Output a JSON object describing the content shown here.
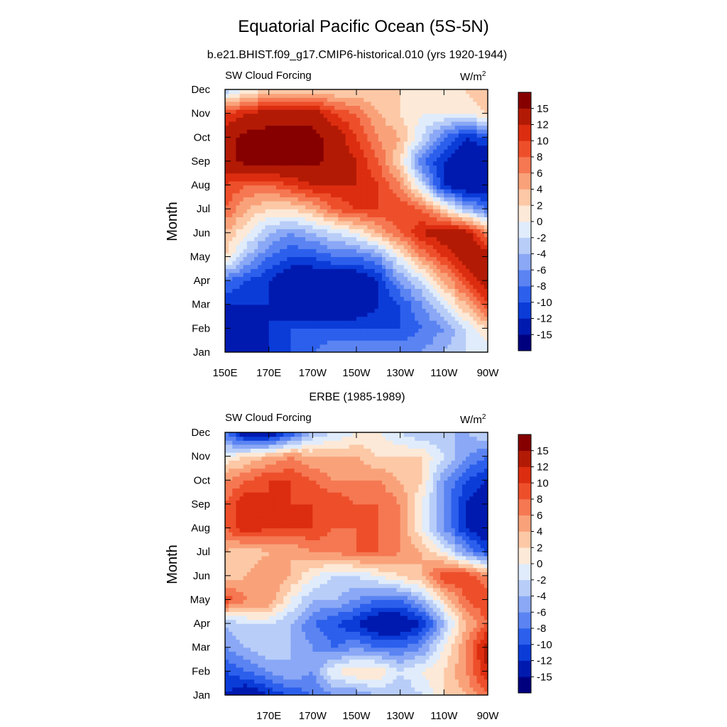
{
  "figure": {
    "title": "Equatorial Pacific Ocean (5S-5N)"
  },
  "colorbar": {
    "colors": [
      "#00007f",
      "#001ab0",
      "#0b3cd8",
      "#2c5fec",
      "#5b84f2",
      "#8aa8f5",
      "#b8cdf8",
      "#e0ecfb",
      "#fde9d7",
      "#fcc8a6",
      "#f9a27a",
      "#f57852",
      "#ee4f2b",
      "#dc2d10",
      "#b31a05",
      "#860000"
    ],
    "levels": [
      -15,
      -12,
      -10,
      -8,
      -6,
      -4,
      -2,
      0,
      2,
      4,
      6,
      8,
      10,
      12,
      15
    ],
    "labels": [
      "15",
      "12",
      "10",
      "8",
      "6",
      "4",
      "2",
      "0",
      "-2",
      "-4",
      "-6",
      "-8",
      "-10",
      "-12",
      "-15"
    ]
  },
  "chart_data": [
    {
      "type": "heatmap",
      "title": "b.e21.BHIST.f09_g17.CMIP6-historical.010 (yrs 1920-1944)",
      "left_label": "SW Cloud Forcing",
      "units": "W/m",
      "units_sup": "2",
      "ylabel": "Month",
      "xlabel": "",
      "y_categories": [
        "Jan",
        "Feb",
        "Mar",
        "Apr",
        "May",
        "Jun",
        "Jul",
        "Aug",
        "Sep",
        "Oct",
        "Nov",
        "Dec"
      ],
      "x_tick_labels": [
        "150E",
        "170E",
        "170W",
        "150W",
        "130W",
        "110W",
        "90W"
      ],
      "x_range_deg_east": [
        150,
        270
      ],
      "x_columns_deg_east": [
        150,
        160,
        170,
        180,
        190,
        200,
        210,
        220,
        230,
        240,
        250,
        260,
        270
      ],
      "values": [
        [
          -15,
          -15,
          -12,
          -10,
          -8,
          -6,
          -6,
          -6,
          -6,
          -6,
          -4,
          -2,
          -2
        ],
        [
          -15,
          -15,
          -12,
          -10,
          -10,
          -10,
          -10,
          -10,
          -10,
          -8,
          -6,
          -2,
          2
        ],
        [
          -12,
          -12,
          -12,
          -15,
          -15,
          -15,
          -15,
          -12,
          -10,
          -6,
          -2,
          4,
          10
        ],
        [
          -8,
          -10,
          -12,
          -15,
          -15,
          -15,
          -15,
          -12,
          -6,
          -2,
          4,
          10,
          14
        ],
        [
          2,
          -4,
          -8,
          -10,
          -10,
          -8,
          -8,
          -6,
          0,
          6,
          10,
          14,
          14
        ],
        [
          4,
          0,
          -4,
          -6,
          -4,
          -2,
          0,
          4,
          8,
          12,
          14,
          14,
          6
        ],
        [
          8,
          4,
          2,
          2,
          4,
          8,
          10,
          10,
          10,
          8,
          2,
          -4,
          -8
        ],
        [
          10,
          8,
          8,
          10,
          12,
          12,
          12,
          10,
          6,
          -2,
          -12,
          -15,
          -15
        ],
        [
          14,
          16,
          16,
          16,
          16,
          14,
          12,
          8,
          2,
          -8,
          -12,
          -15,
          -15
        ],
        [
          14,
          16,
          16,
          16,
          16,
          14,
          10,
          6,
          4,
          -2,
          -8,
          -12,
          -10
        ],
        [
          10,
          12,
          14,
          14,
          14,
          10,
          8,
          4,
          2,
          0,
          0,
          0,
          2
        ],
        [
          -4,
          0,
          2,
          2,
          2,
          2,
          2,
          2,
          2,
          0,
          2,
          2,
          4
        ]
      ]
    },
    {
      "type": "heatmap",
      "title": "ERBE (1985-1989)",
      "left_label": "SW Cloud Forcing",
      "units": "W/m",
      "units_sup": "2",
      "ylabel": "Month",
      "xlabel": "",
      "y_categories": [
        "Jan",
        "Feb",
        "Mar",
        "Apr",
        "May",
        "Jun",
        "Jul",
        "Aug",
        "Sep",
        "Oct",
        "Nov",
        "Dec"
      ],
      "x_tick_labels": [
        "170E",
        "170W",
        "150W",
        "130W",
        "110W",
        "90W"
      ],
      "x_range_deg_east": [
        150,
        270
      ],
      "x_columns_deg_east": [
        150,
        160,
        170,
        180,
        190,
        200,
        210,
        220,
        230,
        240,
        250,
        260,
        270
      ],
      "values": [
        [
          -12,
          -15,
          -12,
          -10,
          -8,
          -6,
          -6,
          -4,
          -4,
          -2,
          2,
          4,
          8
        ],
        [
          -10,
          -8,
          -6,
          -4,
          -6,
          0,
          2,
          2,
          -2,
          0,
          2,
          6,
          12
        ],
        [
          -6,
          -4,
          -2,
          -4,
          -6,
          -8,
          -6,
          -8,
          -8,
          -6,
          0,
          6,
          14
        ],
        [
          -4,
          -2,
          -2,
          -4,
          -8,
          -10,
          -12,
          -15,
          -15,
          -12,
          -4,
          4,
          8
        ],
        [
          10,
          6,
          6,
          0,
          -4,
          -4,
          -6,
          -8,
          -8,
          -4,
          2,
          8,
          10
        ],
        [
          2,
          4,
          6,
          4,
          0,
          -2,
          -2,
          0,
          2,
          4,
          10,
          10,
          6
        ],
        [
          4,
          2,
          4,
          4,
          6,
          6,
          8,
          8,
          6,
          4,
          0,
          -6,
          -10
        ],
        [
          8,
          12,
          10,
          10,
          10,
          8,
          8,
          8,
          6,
          0,
          -6,
          -12,
          -15
        ],
        [
          8,
          12,
          10,
          10,
          10,
          10,
          8,
          8,
          6,
          0,
          -6,
          -12,
          -15
        ],
        [
          6,
          8,
          10,
          10,
          8,
          6,
          6,
          6,
          4,
          2,
          -6,
          -10,
          -12
        ],
        [
          0,
          2,
          4,
          6,
          4,
          4,
          4,
          2,
          2,
          2,
          -2,
          -6,
          -8
        ],
        [
          -8,
          -15,
          -15,
          -10,
          -4,
          -2,
          0,
          0,
          -2,
          -4,
          -4,
          -4,
          -2
        ]
      ]
    }
  ]
}
